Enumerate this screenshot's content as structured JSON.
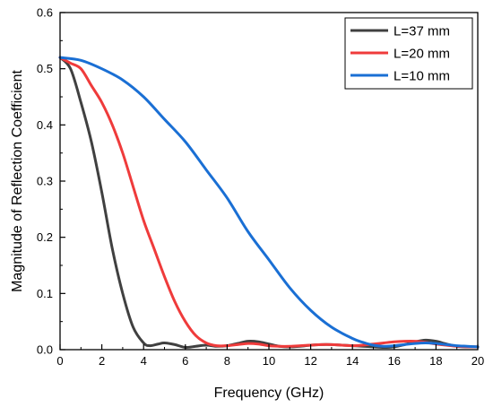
{
  "chart_data": {
    "type": "line",
    "title": "",
    "xlabel": "Frequency (GHz)",
    "ylabel": "Magnitude of Reflection Coefficient",
    "xlim": [
      0,
      20
    ],
    "ylim": [
      0,
      0.6
    ],
    "xticks": [
      0,
      2,
      4,
      6,
      8,
      10,
      12,
      14,
      16,
      18,
      20
    ],
    "yticks": [
      0.0,
      0.1,
      0.2,
      0.3,
      0.4,
      0.5,
      0.6
    ],
    "xtick_labels": [
      "0",
      "2",
      "4",
      "6",
      "8",
      "10",
      "12",
      "14",
      "16",
      "18",
      "20"
    ],
    "ytick_labels": [
      "0.0",
      "0.1",
      "0.2",
      "0.3",
      "0.4",
      "0.5",
      "0.6"
    ],
    "grid": false,
    "legend_position": "top-right",
    "series": [
      {
        "name": "L=37 mm",
        "color": "#404040",
        "x": [
          0,
          0.5,
          1,
          1.5,
          2,
          2.5,
          3,
          3.5,
          4,
          4.3,
          4.7,
          5,
          5.5,
          6,
          6.5,
          7,
          7.5,
          8,
          8.5,
          9,
          9.5,
          10,
          10.5,
          11,
          11.5,
          12,
          12.5,
          13,
          13.5,
          14,
          14.5,
          15,
          15.5,
          16,
          16.5,
          17,
          17.5,
          18,
          18.5,
          19,
          19.5,
          20
        ],
        "y": [
          0.52,
          0.5,
          0.44,
          0.37,
          0.28,
          0.18,
          0.1,
          0.04,
          0.012,
          0.007,
          0.01,
          0.012,
          0.009,
          0.004,
          0.006,
          0.008,
          0.006,
          0.007,
          0.011,
          0.015,
          0.014,
          0.01,
          0.006,
          0.005,
          0.006,
          0.008,
          0.009,
          0.009,
          0.008,
          0.007,
          0.006,
          0.005,
          0.004,
          0.005,
          0.009,
          0.014,
          0.017,
          0.015,
          0.01,
          0.006,
          0.005,
          0.005
        ]
      },
      {
        "name": "L=20 mm",
        "color": "#ef3b3b",
        "x": [
          0,
          0.5,
          1,
          1.5,
          2,
          2.5,
          3,
          3.5,
          4,
          4.5,
          5,
          5.5,
          6,
          6.5,
          7,
          7.5,
          8,
          8.5,
          9,
          9.5,
          10,
          10.5,
          11,
          11.5,
          12,
          12.5,
          13,
          13.5,
          14,
          14.5,
          15,
          15.5,
          16,
          16.5,
          17,
          17.5,
          18,
          18.5,
          19,
          19.5,
          20
        ],
        "y": [
          0.52,
          0.51,
          0.5,
          0.47,
          0.44,
          0.4,
          0.35,
          0.29,
          0.23,
          0.18,
          0.13,
          0.085,
          0.05,
          0.025,
          0.012,
          0.007,
          0.007,
          0.009,
          0.011,
          0.01,
          0.007,
          0.006,
          0.006,
          0.007,
          0.008,
          0.009,
          0.009,
          0.008,
          0.007,
          0.008,
          0.01,
          0.012,
          0.014,
          0.015,
          0.015,
          0.013,
          0.01,
          0.008,
          0.006,
          0.005,
          0.005
        ]
      },
      {
        "name": "L=10 mm",
        "color": "#1a6fd4",
        "x": [
          0,
          1,
          2,
          3,
          4,
          5,
          6,
          7,
          8,
          9,
          10,
          11,
          12,
          13,
          14,
          14.5,
          15,
          15.5,
          16,
          16.5,
          17,
          17.5,
          18,
          18.5,
          19,
          19.5,
          20
        ],
        "y": [
          0.52,
          0.515,
          0.5,
          0.48,
          0.45,
          0.41,
          0.37,
          0.32,
          0.27,
          0.21,
          0.16,
          0.11,
          0.07,
          0.04,
          0.02,
          0.013,
          0.008,
          0.006,
          0.007,
          0.009,
          0.011,
          0.012,
          0.011,
          0.009,
          0.007,
          0.006,
          0.005
        ]
      }
    ]
  }
}
